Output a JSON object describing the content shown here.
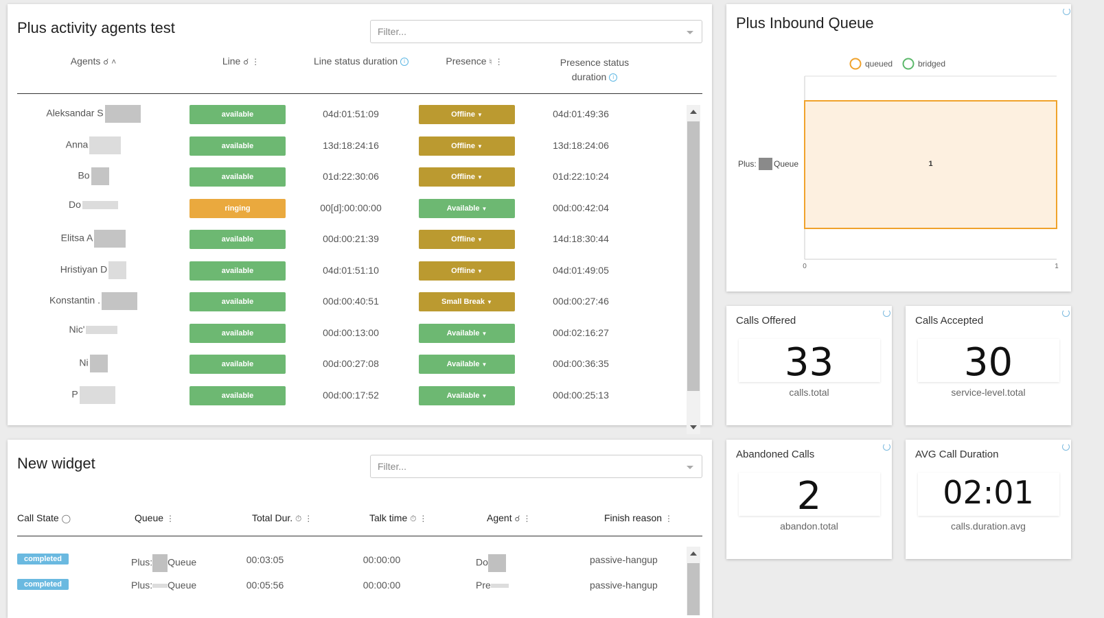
{
  "agents_widget": {
    "title": "Plus activity agents test",
    "filter_placeholder": "Filter...",
    "headers": {
      "agents": "Agents",
      "line": "Line",
      "line_status_duration": "Line status duration",
      "presence": "Presence",
      "presence_status_duration_l1": "Presence status",
      "presence_status_duration_l2": "duration"
    },
    "rows": [
      {
        "name": "Aleksandar S",
        "line": "available",
        "line_dur": "04d:01:51:09",
        "presence": "Offline",
        "pres_dur": "04d:01:49:36"
      },
      {
        "name": "Anna",
        "line": "available",
        "line_dur": "13d:18:24:16",
        "presence": "Offline",
        "pres_dur": "13d:18:24:06"
      },
      {
        "name": "Bo",
        "line": "available",
        "line_dur": "01d:22:30:06",
        "presence": "Offline",
        "pres_dur": "01d:22:10:24"
      },
      {
        "name": "Do",
        "line": "ringing",
        "line_dur": "00[d]:00:00:00",
        "presence": "Available",
        "pres_dur": "00d:00:42:04"
      },
      {
        "name": "Elitsa A",
        "line": "available",
        "line_dur": "00d:00:21:39",
        "presence": "Offline",
        "pres_dur": "14d:18:30:44"
      },
      {
        "name": "Hristiyan D",
        "line": "available",
        "line_dur": "04d:01:51:10",
        "presence": "Offline",
        "pres_dur": "04d:01:49:05"
      },
      {
        "name": "Konstantin .",
        "line": "available",
        "line_dur": "00d:00:40:51",
        "presence": "Small Break",
        "pres_dur": "00d:00:27:46"
      },
      {
        "name": "Nic'",
        "line": "available",
        "line_dur": "00d:00:13:00",
        "presence": "Available",
        "pres_dur": "00d:02:16:27"
      },
      {
        "name": "Ni",
        "line": "available",
        "line_dur": "00d:00:27:08",
        "presence": "Available",
        "pres_dur": "00d:00:36:35"
      },
      {
        "name": "P",
        "line": "available",
        "line_dur": "00d:00:17:52",
        "presence": "Available",
        "pres_dur": "00d:00:25:13"
      }
    ]
  },
  "queue_chart": {
    "title": "Plus Inbound Queue",
    "legend": [
      {
        "label": "queued",
        "color": "#f0a22b"
      },
      {
        "label": "bridged",
        "color": "#5bb86a"
      }
    ],
    "category_prefix": "Plus:",
    "category_suffix": "Queue",
    "bar_label": "1",
    "x_ticks": [
      "0",
      "1"
    ]
  },
  "chart_data": {
    "type": "bar",
    "orientation": "horizontal",
    "title": "Plus Inbound Queue",
    "categories": [
      "Plus: Queue"
    ],
    "series": [
      {
        "name": "queued",
        "values": [
          1
        ]
      },
      {
        "name": "bridged",
        "values": [
          0
        ]
      }
    ],
    "xlim": [
      0,
      1
    ]
  },
  "stats": [
    {
      "title": "Calls Offered",
      "value": "33",
      "sub": "calls.total"
    },
    {
      "title": "Calls Accepted",
      "value": "30",
      "sub": "service-level.total"
    },
    {
      "title": "Abandoned Calls",
      "value": "2",
      "sub": "abandon.total"
    },
    {
      "title": "AVG Call Duration",
      "value": "02:01",
      "sub": "calls.duration.avg"
    }
  ],
  "calls_widget": {
    "title": "New widget",
    "filter_placeholder": "Filter...",
    "headers": {
      "call_state": "Call State",
      "queue": "Queue",
      "total_dur": "Total Dur.",
      "talk_time": "Talk time",
      "agent": "Agent",
      "finish_reason": "Finish reason"
    },
    "rows": [
      {
        "state": "completed",
        "queue_prefix": "Plus:",
        "queue_suffix": "Queue",
        "total": "00:03:05",
        "talk": "00:00:00",
        "agent": "Do",
        "reason": "passive-hangup"
      },
      {
        "state": "completed",
        "queue_prefix": "Plus:",
        "queue_suffix": "Queue",
        "total": "00:05:56",
        "talk": "00:00:00",
        "agent": "Pre",
        "reason": "passive-hangup"
      }
    ]
  },
  "colors": {
    "available_green": "#6db872",
    "ringing_orange": "#eaa93e",
    "offline_olive": "#bb9a30",
    "completed_blue": "#6ab9e0"
  }
}
